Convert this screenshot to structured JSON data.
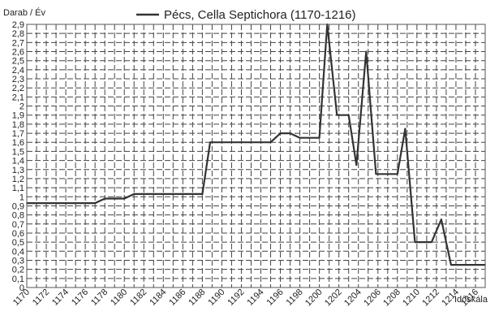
{
  "chart_data": {
    "type": "line",
    "ylabel": "Darab / Év",
    "xlabel": "Időskála",
    "legend_entry": "Pécs, Cella Septichora (1170-1216)",
    "legend_position": "top-center",
    "grid": true,
    "grid_style": "dashed",
    "line_color": "#333333",
    "xlim": [
      1170,
      1217
    ],
    "ylim": [
      0,
      2.9
    ],
    "x_tick_labels": [
      "1170",
      "1172",
      "1174",
      "1176",
      "1178",
      "1180",
      "1182",
      "1184",
      "1186",
      "1188",
      "1190",
      "1192",
      "1194",
      "1196",
      "1198",
      "1200",
      "1202",
      "1204",
      "1206",
      "1208",
      "1210",
      "1212",
      "1214",
      "1216"
    ],
    "y_tick_labels": [
      "0",
      "0,1",
      "0,2",
      "0,3",
      "0,4",
      "0,5",
      "0,6",
      "0,7",
      "0,8",
      "0,9",
      "1",
      "1,1",
      "1,2",
      "1,3",
      "1,4",
      "1,5",
      "1,6",
      "1,7",
      "1,8",
      "1,9",
      "2",
      "2,1",
      "2,2",
      "2,3",
      "2,4",
      "2,5",
      "2,6",
      "2,7",
      "2,8",
      "2,9"
    ],
    "series": [
      {
        "name": "Pécs, Cella Septichora (1170-1216)",
        "x": [
          1170,
          1177,
          1178,
          1180,
          1181,
          1188,
          1188.8,
          1195,
          1196,
          1197,
          1198,
          1200,
          1200.8,
          1201.8,
          1203,
          1203.8,
          1204.8,
          1205.8,
          1208,
          1208.8,
          1209.8,
          1211.5,
          1212.5,
          1213.5,
          1217
        ],
        "y": [
          0.93,
          0.93,
          0.98,
          0.98,
          1.03,
          1.03,
          1.6,
          1.6,
          1.7,
          1.7,
          1.65,
          1.65,
          2.9,
          1.9,
          1.9,
          1.35,
          2.6,
          1.25,
          1.25,
          1.75,
          0.5,
          0.5,
          0.75,
          0.25,
          0.25
        ]
      }
    ]
  }
}
